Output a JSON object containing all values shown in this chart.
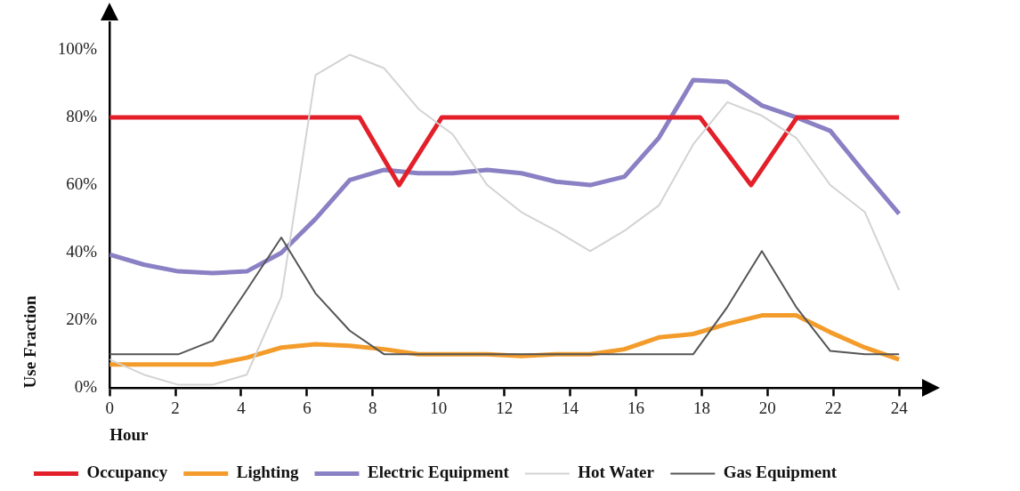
{
  "chart_data": {
    "type": "line",
    "xlabel": "Hour",
    "ylabel": "Use Fraction",
    "x": [
      0,
      1.04,
      2.09,
      3.13,
      4.17,
      5.22,
      6.26,
      7.3,
      8.35,
      9.39,
      10.43,
      11.48,
      12.52,
      13.57,
      14.61,
      15.65,
      16.7,
      17.74,
      18.78,
      19.83,
      20.87,
      21.91,
      22.96,
      24
    ],
    "series": [
      {
        "name": "Occupancy",
        "color": "#e3202a",
        "x": [
          0,
          7.6,
          8.8,
          10.1,
          17.95,
          19.5,
          20.9,
          24
        ],
        "values": [
          80,
          80,
          60,
          80,
          80,
          60,
          80,
          80
        ]
      },
      {
        "name": "Lighting",
        "color": "#f39c2b",
        "values": [
          7,
          7,
          7,
          7,
          9,
          12,
          13,
          12.5,
          11.5,
          10,
          10,
          10,
          9.5,
          10,
          10,
          11.5,
          15,
          16,
          19,
          21.5,
          21.5,
          16.5,
          12,
          8.5
        ]
      },
      {
        "name": "Electric Equipment",
        "color": "#8a80c4",
        "values": [
          39.5,
          36.5,
          34.5,
          34,
          34.5,
          40,
          50,
          61.5,
          64.5,
          63.5,
          63.5,
          64.5,
          63.5,
          61,
          60,
          62.5,
          74,
          91,
          90.5,
          83.5,
          80,
          76,
          63.5,
          51.5
        ]
      },
      {
        "name": "Hot Water",
        "color": "#d3d3d3",
        "values": [
          8.5,
          4,
          1,
          1,
          4,
          27,
          92.5,
          98.5,
          94.5,
          82.5,
          75,
          60,
          52,
          46.5,
          40.5,
          46.5,
          54,
          72,
          84.5,
          80.5,
          74,
          60,
          52,
          29
        ]
      },
      {
        "name": "Gas Equipment",
        "color": "#555555",
        "values": [
          10,
          10,
          10,
          14,
          29,
          44.5,
          28,
          17,
          10,
          10,
          10,
          10,
          10,
          10,
          10,
          10,
          10,
          10,
          24,
          40.5,
          24,
          11,
          10,
          10
        ]
      }
    ],
    "xlim": [
      0,
      24.7
    ],
    "xticks": [
      0,
      2,
      4,
      6,
      8,
      10,
      12,
      14,
      16,
      18,
      20,
      22,
      24
    ],
    "ylim": [
      0,
      108
    ],
    "yticks": [
      {
        "value": 0,
        "label": "0%"
      },
      {
        "value": 20,
        "label": "20%"
      },
      {
        "value": 40,
        "label": "40%"
      },
      {
        "value": 60,
        "label": "60%"
      },
      {
        "value": 80,
        "label": "80%"
      },
      {
        "value": 100,
        "label": "100%"
      }
    ],
    "grid": false,
    "legend": "bottom",
    "marker": "none",
    "line_style": "solid"
  }
}
